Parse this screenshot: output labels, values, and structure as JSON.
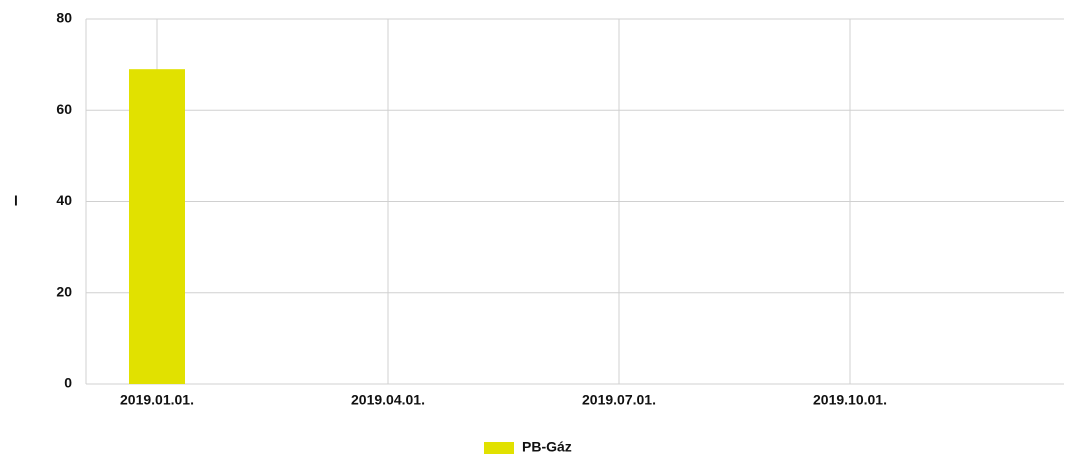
{
  "chart_data": {
    "type": "bar",
    "y_label": "l",
    "categories": [
      "2019.01.01.",
      "2019.04.01.",
      "2019.07.01.",
      "2019.10.01."
    ],
    "series": [
      {
        "name": "PB-Gáz",
        "color": "#e1e100",
        "values": [
          69,
          null,
          null,
          null
        ]
      }
    ],
    "ylim": [
      0,
      80
    ],
    "yticks": [
      0,
      20,
      40,
      60,
      80
    ],
    "grid": true,
    "legend": "bottom"
  }
}
